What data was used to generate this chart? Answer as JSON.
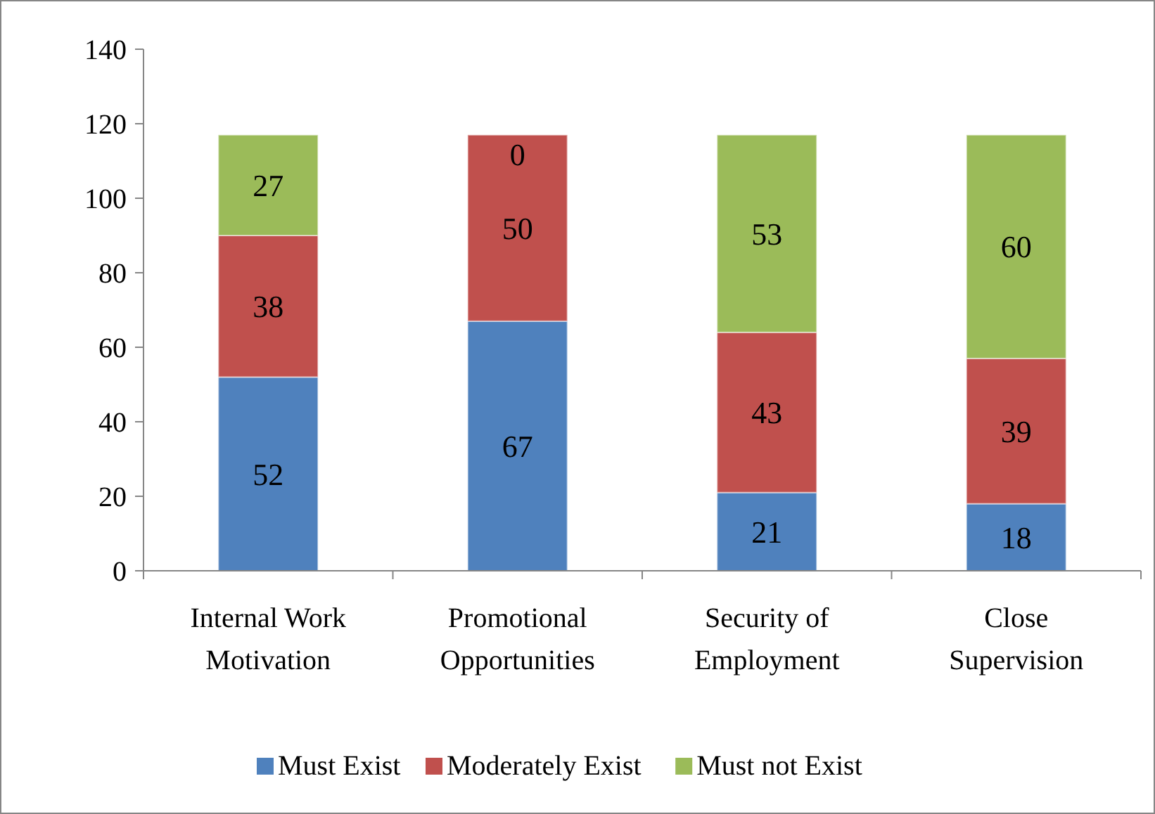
{
  "chart_data": {
    "type": "bar",
    "stacked": true,
    "categories": [
      "Internal Work Motivation",
      "Promotional Opportunities",
      "Security of Employment",
      "Close Supervision"
    ],
    "series": [
      {
        "name": "Must Exist",
        "color": "#4f81bd",
        "values": [
          52,
          67,
          21,
          18
        ]
      },
      {
        "name": "Moderately Exist",
        "color": "#c0504d",
        "values": [
          38,
          50,
          43,
          39
        ]
      },
      {
        "name": "Must not Exist",
        "color": "#9bbb59",
        "values": [
          27,
          0,
          53,
          60
        ]
      }
    ],
    "ylim": [
      0,
      140
    ],
    "yticks": [
      0,
      20,
      40,
      60,
      80,
      100,
      120,
      140
    ],
    "grid": false,
    "legend": "bottom",
    "data_labels": true
  }
}
